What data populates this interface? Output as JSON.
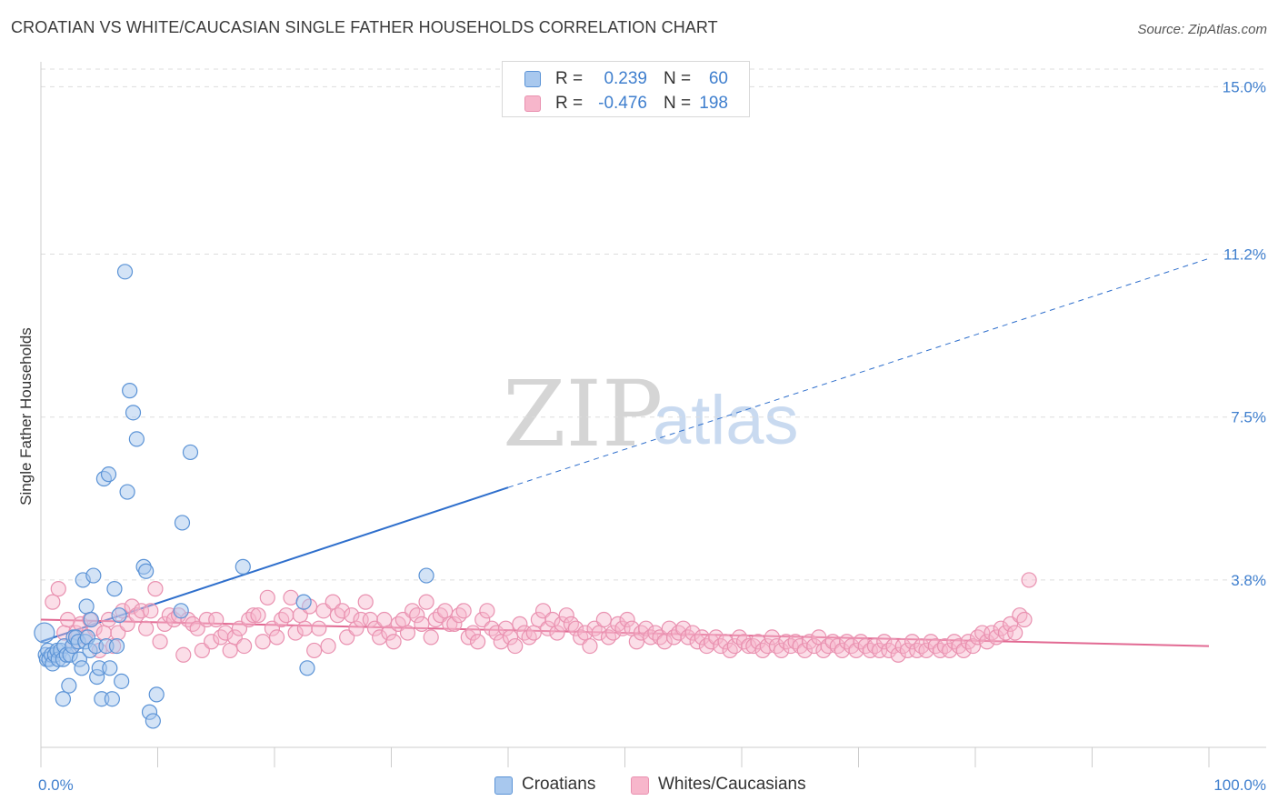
{
  "title": "CROATIAN VS WHITE/CAUCASIAN SINGLE FATHER HOUSEHOLDS CORRELATION CHART",
  "source": "Source: ZipAtlas.com",
  "watermark": {
    "zip": "ZIP",
    "atlas": "atlas"
  },
  "legend": {
    "croatians": {
      "r_label": "R =",
      "r_value": "0.239",
      "n_label": "N =",
      "n_value": "60"
    },
    "whites": {
      "r_label": "R =",
      "r_value": "-0.476",
      "n_label": "N =",
      "n_value": "198"
    }
  },
  "bottom_legend": {
    "croatians": "Croatians",
    "whites": "Whites/Caucasians"
  },
  "colors": {
    "croatians_fill": "#a8c8ee",
    "croatians_stroke": "#5b93d6",
    "croatians_line": "#2f6fcc",
    "whites_fill": "#f7b6cb",
    "whites_stroke": "#e991b0",
    "whites_line": "#e26a93",
    "grid": "#dddddd",
    "tick_text": "#3f7fce"
  },
  "chart_data": {
    "type": "scatter",
    "title": "CROATIAN VS WHITE/CAUCASIAN SINGLE FATHER HOUSEHOLDS CORRELATION CHART",
    "xlabel": "",
    "ylabel": "Single Father Households",
    "xlim": [
      0,
      100
    ],
    "ylim": [
      0,
      15.4
    ],
    "x_tick_labels": [
      "0.0%",
      "100.0%"
    ],
    "y_ticks": [
      3.8,
      7.5,
      11.2,
      15.0
    ],
    "y_tick_labels": [
      "3.8%",
      "7.5%",
      "11.2%",
      "15.0%"
    ],
    "series": [
      {
        "name": "Croatians",
        "r": 0.239,
        "n": 60,
        "trend": {
          "x0": 0,
          "y0": 2.4,
          "x_solid_end": 40,
          "y_solid_end": 5.9,
          "x1": 100,
          "y1": 11.1
        },
        "points": [
          [
            0.3,
            2.6
          ],
          [
            0.4,
            2.1
          ],
          [
            0.5,
            2.0
          ],
          [
            0.6,
            2.2
          ],
          [
            0.7,
            2.0
          ],
          [
            0.9,
            2.1
          ],
          [
            1.0,
            1.9
          ],
          [
            1.2,
            2.1
          ],
          [
            1.4,
            2.2
          ],
          [
            1.5,
            2.0
          ],
          [
            1.7,
            2.2
          ],
          [
            1.9,
            2.0
          ],
          [
            2.0,
            2.3
          ],
          [
            2.2,
            2.1
          ],
          [
            2.4,
            1.4
          ],
          [
            2.5,
            2.1
          ],
          [
            2.7,
            2.3
          ],
          [
            2.8,
            2.5
          ],
          [
            3.0,
            2.5
          ],
          [
            3.2,
            2.4
          ],
          [
            3.3,
            2.0
          ],
          [
            3.5,
            1.8
          ],
          [
            3.6,
            3.8
          ],
          [
            3.8,
            2.4
          ],
          [
            3.9,
            3.2
          ],
          [
            4.0,
            2.5
          ],
          [
            4.2,
            2.2
          ],
          [
            4.3,
            2.9
          ],
          [
            4.5,
            3.9
          ],
          [
            4.7,
            2.3
          ],
          [
            4.8,
            1.6
          ],
          [
            5.0,
            1.8
          ],
          [
            5.2,
            1.1
          ],
          [
            5.4,
            6.1
          ],
          [
            5.6,
            2.3
          ],
          [
            5.8,
            6.2
          ],
          [
            5.9,
            1.8
          ],
          [
            6.1,
            1.1
          ],
          [
            6.3,
            3.6
          ],
          [
            6.5,
            2.3
          ],
          [
            6.7,
            3.0
          ],
          [
            6.9,
            1.5
          ],
          [
            7.2,
            10.8
          ],
          [
            7.4,
            5.8
          ],
          [
            7.6,
            8.1
          ],
          [
            7.9,
            7.6
          ],
          [
            8.2,
            7.0
          ],
          [
            8.8,
            4.1
          ],
          [
            9.0,
            4.0
          ],
          [
            9.3,
            0.8
          ],
          [
            9.6,
            0.6
          ],
          [
            9.9,
            1.2
          ],
          [
            12.0,
            3.1
          ],
          [
            12.1,
            5.1
          ],
          [
            12.8,
            6.7
          ],
          [
            17.3,
            4.1
          ],
          [
            1.9,
            1.1
          ],
          [
            22.5,
            3.3
          ],
          [
            22.8,
            1.8
          ],
          [
            33.0,
            3.9
          ]
        ]
      },
      {
        "name": "Whites/Caucasians",
        "r": -0.476,
        "n": 198,
        "trend": {
          "x0": 0,
          "y0": 2.9,
          "x1": 100,
          "y1": 2.3
        },
        "points": [
          [
            1.0,
            3.3
          ],
          [
            1.5,
            3.6
          ],
          [
            2.0,
            2.6
          ],
          [
            2.3,
            2.9
          ],
          [
            2.7,
            2.3
          ],
          [
            3.0,
            2.6
          ],
          [
            3.4,
            2.8
          ],
          [
            3.8,
            2.5
          ],
          [
            4.2,
            2.9
          ],
          [
            4.6,
            2.7
          ],
          [
            5.0,
            2.2
          ],
          [
            5.4,
            2.6
          ],
          [
            5.8,
            2.9
          ],
          [
            6.2,
            2.3
          ],
          [
            6.6,
            2.6
          ],
          [
            7.0,
            3.1
          ],
          [
            7.4,
            2.8
          ],
          [
            7.8,
            3.2
          ],
          [
            8.2,
            3.0
          ],
          [
            8.6,
            3.1
          ],
          [
            9.0,
            2.7
          ],
          [
            9.4,
            3.1
          ],
          [
            9.8,
            3.6
          ],
          [
            10.2,
            2.4
          ],
          [
            10.6,
            2.8
          ],
          [
            11.0,
            3.0
          ],
          [
            11.4,
            2.9
          ],
          [
            11.8,
            3.0
          ],
          [
            12.2,
            2.1
          ],
          [
            12.6,
            2.9
          ],
          [
            13.0,
            2.8
          ],
          [
            13.4,
            2.7
          ],
          [
            13.8,
            2.2
          ],
          [
            14.2,
            2.9
          ],
          [
            14.6,
            2.4
          ],
          [
            15.0,
            2.9
          ],
          [
            15.4,
            2.5
          ],
          [
            15.8,
            2.6
          ],
          [
            16.2,
            2.2
          ],
          [
            16.6,
            2.5
          ],
          [
            17.0,
            2.7
          ],
          [
            17.4,
            2.3
          ],
          [
            17.8,
            2.9
          ],
          [
            18.2,
            3.0
          ],
          [
            18.6,
            3.0
          ],
          [
            19.0,
            2.4
          ],
          [
            19.4,
            3.4
          ],
          [
            19.8,
            2.7
          ],
          [
            20.2,
            2.5
          ],
          [
            20.6,
            2.9
          ],
          [
            21.0,
            3.0
          ],
          [
            21.4,
            3.4
          ],
          [
            21.8,
            2.6
          ],
          [
            22.2,
            3.0
          ],
          [
            22.6,
            2.7
          ],
          [
            23.0,
            3.2
          ],
          [
            23.4,
            2.2
          ],
          [
            23.8,
            2.7
          ],
          [
            24.2,
            3.1
          ],
          [
            24.6,
            2.3
          ],
          [
            25.0,
            3.3
          ],
          [
            25.4,
            3.0
          ],
          [
            25.8,
            3.1
          ],
          [
            26.2,
            2.5
          ],
          [
            26.6,
            3.0
          ],
          [
            27.0,
            2.7
          ],
          [
            27.4,
            2.9
          ],
          [
            27.8,
            3.3
          ],
          [
            28.2,
            2.9
          ],
          [
            28.6,
            2.7
          ],
          [
            29.0,
            2.5
          ],
          [
            29.4,
            2.9
          ],
          [
            29.8,
            2.6
          ],
          [
            30.2,
            2.4
          ],
          [
            30.6,
            2.8
          ],
          [
            31.0,
            2.9
          ],
          [
            31.4,
            2.6
          ],
          [
            31.8,
            3.1
          ],
          [
            32.2,
            3.0
          ],
          [
            32.6,
            2.8
          ],
          [
            33.0,
            3.3
          ],
          [
            33.4,
            2.5
          ],
          [
            33.8,
            2.9
          ],
          [
            34.2,
            3.0
          ],
          [
            34.6,
            3.1
          ],
          [
            35.0,
            2.8
          ],
          [
            35.4,
            2.8
          ],
          [
            35.8,
            3.0
          ],
          [
            36.2,
            3.1
          ],
          [
            36.6,
            2.5
          ],
          [
            37.0,
            2.6
          ],
          [
            37.4,
            2.4
          ],
          [
            37.8,
            2.9
          ],
          [
            38.2,
            3.1
          ],
          [
            38.6,
            2.7
          ],
          [
            39.0,
            2.6
          ],
          [
            39.4,
            2.4
          ],
          [
            39.8,
            2.7
          ],
          [
            40.2,
            2.5
          ],
          [
            40.6,
            2.3
          ],
          [
            41.0,
            2.8
          ],
          [
            41.4,
            2.6
          ],
          [
            41.8,
            2.5
          ],
          [
            42.2,
            2.6
          ],
          [
            42.6,
            2.9
          ],
          [
            43.0,
            3.1
          ],
          [
            43.4,
            2.7
          ],
          [
            43.8,
            2.9
          ],
          [
            44.2,
            2.6
          ],
          [
            44.6,
            2.8
          ],
          [
            45.0,
            3.0
          ],
          [
            45.4,
            2.8
          ],
          [
            45.8,
            2.7
          ],
          [
            46.2,
            2.5
          ],
          [
            46.6,
            2.6
          ],
          [
            47.0,
            2.3
          ],
          [
            47.4,
            2.7
          ],
          [
            47.8,
            2.6
          ],
          [
            48.2,
            2.9
          ],
          [
            48.6,
            2.5
          ],
          [
            49.0,
            2.6
          ],
          [
            49.4,
            2.8
          ],
          [
            49.8,
            2.7
          ],
          [
            50.2,
            2.9
          ],
          [
            50.6,
            2.7
          ],
          [
            51.0,
            2.4
          ],
          [
            51.4,
            2.6
          ],
          [
            51.8,
            2.7
          ],
          [
            52.2,
            2.5
          ],
          [
            52.6,
            2.6
          ],
          [
            53.0,
            2.5
          ],
          [
            53.4,
            2.4
          ],
          [
            53.8,
            2.7
          ],
          [
            54.2,
            2.5
          ],
          [
            54.6,
            2.6
          ],
          [
            55.0,
            2.7
          ],
          [
            55.4,
            2.5
          ],
          [
            55.8,
            2.6
          ],
          [
            56.2,
            2.4
          ],
          [
            56.6,
            2.5
          ],
          [
            57.0,
            2.3
          ],
          [
            57.4,
            2.4
          ],
          [
            57.8,
            2.5
          ],
          [
            58.2,
            2.3
          ],
          [
            58.6,
            2.4
          ],
          [
            59.0,
            2.2
          ],
          [
            59.4,
            2.3
          ],
          [
            59.8,
            2.5
          ],
          [
            60.2,
            2.4
          ],
          [
            60.6,
            2.3
          ],
          [
            61.0,
            2.3
          ],
          [
            61.4,
            2.4
          ],
          [
            61.8,
            2.2
          ],
          [
            62.2,
            2.3
          ],
          [
            62.6,
            2.5
          ],
          [
            63.0,
            2.3
          ],
          [
            63.4,
            2.2
          ],
          [
            63.8,
            2.4
          ],
          [
            64.2,
            2.3
          ],
          [
            64.6,
            2.4
          ],
          [
            65.0,
            2.3
          ],
          [
            65.4,
            2.2
          ],
          [
            65.8,
            2.4
          ],
          [
            66.2,
            2.3
          ],
          [
            66.6,
            2.5
          ],
          [
            67.0,
            2.2
          ],
          [
            67.4,
            2.3
          ],
          [
            67.8,
            2.4
          ],
          [
            68.2,
            2.3
          ],
          [
            68.6,
            2.2
          ],
          [
            69.0,
            2.4
          ],
          [
            69.4,
            2.3
          ],
          [
            69.8,
            2.2
          ],
          [
            70.2,
            2.4
          ],
          [
            70.6,
            2.3
          ],
          [
            71.0,
            2.2
          ],
          [
            71.4,
            2.3
          ],
          [
            71.8,
            2.2
          ],
          [
            72.2,
            2.4
          ],
          [
            72.6,
            2.2
          ],
          [
            73.0,
            2.3
          ],
          [
            73.4,
            2.1
          ],
          [
            73.8,
            2.3
          ],
          [
            74.2,
            2.2
          ],
          [
            74.6,
            2.4
          ],
          [
            75.0,
            2.2
          ],
          [
            75.4,
            2.3
          ],
          [
            75.8,
            2.2
          ],
          [
            76.2,
            2.4
          ],
          [
            76.6,
            2.3
          ],
          [
            77.0,
            2.2
          ],
          [
            77.4,
            2.3
          ],
          [
            77.8,
            2.2
          ],
          [
            78.2,
            2.4
          ],
          [
            78.6,
            2.3
          ],
          [
            79.0,
            2.2
          ],
          [
            79.4,
            2.4
          ],
          [
            79.8,
            2.3
          ],
          [
            80.2,
            2.5
          ],
          [
            80.6,
            2.6
          ],
          [
            81.0,
            2.4
          ],
          [
            81.4,
            2.6
          ],
          [
            81.8,
            2.5
          ],
          [
            82.2,
            2.7
          ],
          [
            82.6,
            2.6
          ],
          [
            83.0,
            2.8
          ],
          [
            83.4,
            2.6
          ],
          [
            83.8,
            3.0
          ],
          [
            84.2,
            2.9
          ],
          [
            84.6,
            3.8
          ]
        ]
      }
    ]
  }
}
